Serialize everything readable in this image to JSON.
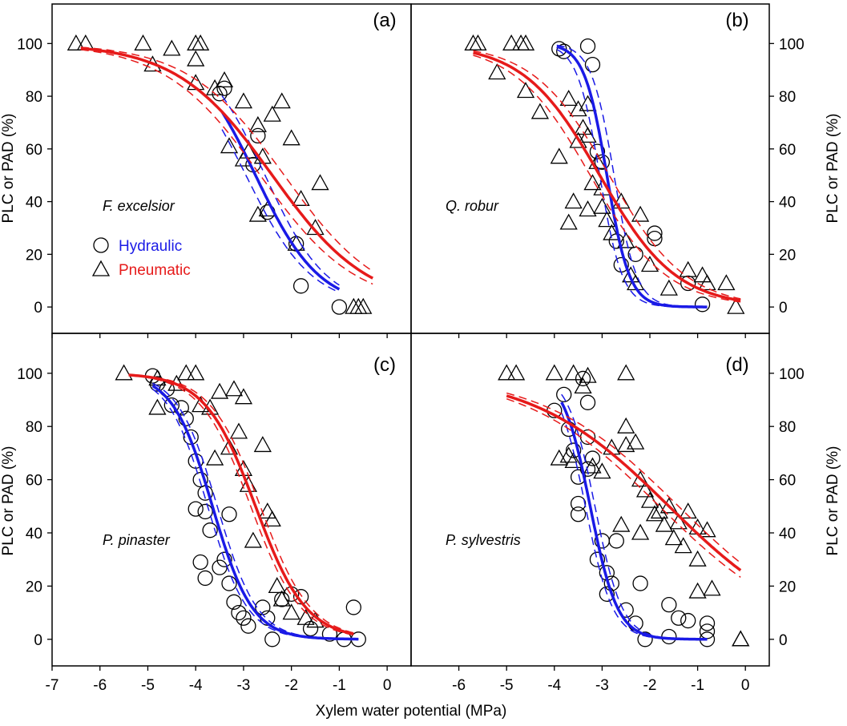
{
  "colors": {
    "hydraulic": "#1a1ae6",
    "pneumatic": "#e61a1a",
    "marker_stroke": "#000000",
    "frame": "#000000"
  },
  "figure": {
    "xlabel": "Xylem water potential (MPa)",
    "ylabel_left": "PLC or PAD (%)",
    "ylabel_right": "PLC or PAD (%)"
  },
  "legend": {
    "hydraulic_label": "Hydraulic",
    "pneumatic_label": "Pneumatic"
  },
  "chart_data": [
    {
      "panel": "(a)",
      "species": "F. excelsior",
      "type": "scatter",
      "xlim": [
        -7,
        0.5
      ],
      "ylim": [
        -10,
        115
      ],
      "xticks": [
        "-7",
        "-6",
        "-5",
        "-4",
        "-3",
        "-2",
        "-1",
        "0"
      ],
      "yticks": [
        "0",
        "20",
        "40",
        "60",
        "80",
        "100"
      ],
      "series": [
        {
          "name": "Hydraulic",
          "marker": "circle",
          "points": [
            [
              -3.5,
              81
            ],
            [
              -3.4,
              83
            ],
            [
              -2.8,
              54
            ],
            [
              -2.5,
              36
            ],
            [
              -2.7,
              65
            ],
            [
              -1.9,
              24
            ],
            [
              -1.8,
              8
            ],
            [
              -1.0,
              0
            ]
          ],
          "fit": {
            "p50": -2.75,
            "slope": 1.5,
            "xrange": [
              -3.45,
              -1.0
            ]
          },
          "ci": {
            "low": {
              "p50": -2.55,
              "slope": 1.55
            },
            "high": {
              "p50": -2.95,
              "slope": 1.45
            }
          }
        },
        {
          "name": "Pneumatic",
          "marker": "triangle",
          "points": [
            [
              -6.5,
              100
            ],
            [
              -6.3,
              100
            ],
            [
              -5.1,
              100
            ],
            [
              -4.5,
              98
            ],
            [
              -4.9,
              92
            ],
            [
              -4.0,
              100
            ],
            [
              -3.9,
              100
            ],
            [
              -4.0,
              94
            ],
            [
              -4.0,
              85
            ],
            [
              -3.6,
              83
            ],
            [
              -3.4,
              86
            ],
            [
              -3.3,
              61
            ],
            [
              -3.0,
              78
            ],
            [
              -3.0,
              56
            ],
            [
              -2.9,
              59
            ],
            [
              -2.7,
              69
            ],
            [
              -2.7,
              35
            ],
            [
              -2.6,
              57
            ],
            [
              -2.5,
              37
            ],
            [
              -2.4,
              73
            ],
            [
              -2.2,
              78
            ],
            [
              -2.0,
              64
            ],
            [
              -1.8,
              41
            ],
            [
              -1.9,
              24
            ],
            [
              -1.5,
              30
            ],
            [
              -1.4,
              47
            ],
            [
              -0.7,
              0
            ],
            [
              -0.6,
              0
            ],
            [
              -0.5,
              0
            ]
          ],
          "fit": {
            "p50": -2.4,
            "slope": 1.0,
            "xrange": [
              -6.4,
              -0.3
            ]
          },
          "ci": {
            "low": {
              "p50": -2.15,
              "slope": 1.0
            },
            "high": {
              "p50": -2.65,
              "slope": 1.0
            }
          }
        }
      ]
    },
    {
      "panel": "(b)",
      "species": "Q. robur",
      "type": "scatter",
      "xlim": [
        -7,
        0.5
      ],
      "ylim": [
        -10,
        115
      ],
      "xticks": [
        "-6",
        "-5",
        "-4",
        "-3",
        "-2",
        "-1",
        "0"
      ],
      "yticks": [
        "0",
        "20",
        "40",
        "60",
        "80",
        "100"
      ],
      "series": [
        {
          "name": "Hydraulic",
          "marker": "circle",
          "points": [
            [
              -3.9,
              98
            ],
            [
              -3.8,
              97
            ],
            [
              -3.3,
              99
            ],
            [
              -3.2,
              92
            ],
            [
              -3.1,
              59
            ],
            [
              -3.0,
              55
            ],
            [
              -2.7,
              25
            ],
            [
              -2.6,
              16
            ],
            [
              -2.3,
              20
            ],
            [
              -1.9,
              28
            ],
            [
              -1.9,
              26
            ],
            [
              -1.2,
              9
            ],
            [
              -0.9,
              1
            ]
          ],
          "fit": {
            "p50": -2.9,
            "slope": 4.2,
            "xrange": [
              -3.95,
              -0.8
            ]
          },
          "ci": {
            "low": {
              "p50": -2.75,
              "slope": 4.2
            },
            "high": {
              "p50": -3.05,
              "slope": 4.2
            }
          }
        },
        {
          "name": "Pneumatic",
          "marker": "triangle",
          "points": [
            [
              -5.7,
              100
            ],
            [
              -5.6,
              100
            ],
            [
              -4.9,
              100
            ],
            [
              -4.7,
              100
            ],
            [
              -4.6,
              100
            ],
            [
              -5.2,
              89
            ],
            [
              -4.6,
              82
            ],
            [
              -4.3,
              74
            ],
            [
              -3.7,
              79
            ],
            [
              -3.5,
              75
            ],
            [
              -3.3,
              77
            ],
            [
              -3.5,
              63
            ],
            [
              -3.4,
              68
            ],
            [
              -3.3,
              65
            ],
            [
              -3.1,
              55
            ],
            [
              -3.2,
              47
            ],
            [
              -3.0,
              45
            ],
            [
              -3.0,
              38
            ],
            [
              -2.9,
              33
            ],
            [
              -2.8,
              28
            ],
            [
              -3.9,
              57
            ],
            [
              -3.6,
              40
            ],
            [
              -3.7,
              32
            ],
            [
              -3.3,
              37
            ],
            [
              -2.6,
              40
            ],
            [
              -2.5,
              25
            ],
            [
              -2.4,
              12
            ],
            [
              -2.3,
              9
            ],
            [
              -2.2,
              35
            ],
            [
              -2.0,
              16
            ],
            [
              -1.6,
              7
            ],
            [
              -1.2,
              14
            ],
            [
              -0.9,
              12
            ],
            [
              -0.8,
              9
            ],
            [
              -0.4,
              9
            ],
            [
              -0.2,
              0
            ]
          ],
          "fit": {
            "p50": -3.05,
            "slope": 1.25,
            "xrange": [
              -5.7,
              -0.1
            ]
          },
          "ci": {
            "low": {
              "p50": -2.85,
              "slope": 1.25
            },
            "high": {
              "p50": -3.25,
              "slope": 1.25
            }
          }
        }
      ]
    },
    {
      "panel": "(c)",
      "species": "P. pinaster",
      "type": "scatter",
      "xlim": [
        -7,
        0.5
      ],
      "ylim": [
        -10,
        115
      ],
      "xticks": [
        "-7",
        "-6",
        "-5",
        "-4",
        "-3",
        "-2",
        "-1",
        "0"
      ],
      "yticks": [
        "0",
        "20",
        "40",
        "60",
        "80",
        "100"
      ],
      "series": [
        {
          "name": "Hydraulic",
          "marker": "circle",
          "points": [
            [
              -4.9,
              99
            ],
            [
              -4.8,
              96
            ],
            [
              -4.6,
              94
            ],
            [
              -4.5,
              88
            ],
            [
              -4.3,
              87
            ],
            [
              -4.2,
              83
            ],
            [
              -4.1,
              76
            ],
            [
              -4.0,
              67
            ],
            [
              -3.9,
              60
            ],
            [
              -3.8,
              55
            ],
            [
              -3.8,
              48
            ],
            [
              -3.7,
              41
            ],
            [
              -4.0,
              49
            ],
            [
              -3.9,
              29
            ],
            [
              -3.8,
              23
            ],
            [
              -3.5,
              27
            ],
            [
              -3.4,
              30
            ],
            [
              -3.3,
              47
            ],
            [
              -3.3,
              21
            ],
            [
              -3.2,
              14
            ],
            [
              -3.1,
              10
            ],
            [
              -3.0,
              8
            ],
            [
              -2.9,
              5
            ],
            [
              -2.6,
              12
            ],
            [
              -2.5,
              8
            ],
            [
              -2.4,
              0
            ],
            [
              -2.2,
              15
            ],
            [
              -2.0,
              17
            ],
            [
              -1.8,
              16
            ],
            [
              -1.6,
              4
            ],
            [
              -1.2,
              2
            ],
            [
              -0.9,
              0
            ],
            [
              -0.7,
              12
            ],
            [
              -0.6,
              0
            ]
          ],
          "fit": {
            "p50": -3.65,
            "slope": 2.4,
            "xrange": [
              -4.9,
              -0.6
            ]
          },
          "ci": {
            "low": {
              "p50": -3.55,
              "slope": 2.4
            },
            "high": {
              "p50": -3.75,
              "slope": 2.4
            }
          }
        },
        {
          "name": "Pneumatic",
          "marker": "triangle",
          "points": [
            [
              -5.5,
              100
            ],
            [
              -4.8,
              98
            ],
            [
              -4.4,
              96
            ],
            [
              -4.2,
              100
            ],
            [
              -4.0,
              100
            ],
            [
              -3.9,
              88
            ],
            [
              -3.7,
              87
            ],
            [
              -3.5,
              93
            ],
            [
              -3.2,
              94
            ],
            [
              -3.0,
              91
            ],
            [
              -3.3,
              72
            ],
            [
              -3.1,
              78
            ],
            [
              -2.9,
              58
            ],
            [
              -2.6,
              73
            ],
            [
              -2.8,
              37
            ],
            [
              -2.5,
              48
            ],
            [
              -2.4,
              45
            ],
            [
              -2.3,
              20
            ],
            [
              -2.2,
              15
            ],
            [
              -2.0,
              10
            ],
            [
              -1.7,
              8
            ],
            [
              -1.5,
              7
            ],
            [
              -4.8,
              87
            ],
            [
              -3.6,
              68
            ],
            [
              -3.0,
              64
            ]
          ],
          "fit": {
            "p50": -2.75,
            "slope": 1.9,
            "xrange": [
              -5.4,
              -0.7
            ]
          },
          "ci": {
            "low": {
              "p50": -2.65,
              "slope": 1.9
            },
            "high": {
              "p50": -2.85,
              "slope": 1.9
            }
          }
        }
      ]
    },
    {
      "panel": "(d)",
      "species": "P. sylvestris",
      "type": "scatter",
      "xlim": [
        -7,
        0.5
      ],
      "ylim": [
        -10,
        115
      ],
      "xticks": [
        "-6",
        "-5",
        "-4",
        "-3",
        "-2",
        "-1",
        "0"
      ],
      "yticks": [
        "0",
        "20",
        "40",
        "60",
        "80",
        "100"
      ],
      "series": [
        {
          "name": "Hydraulic",
          "marker": "circle",
          "points": [
            [
              -4.0,
              86
            ],
            [
              -3.8,
              92
            ],
            [
              -3.7,
              79
            ],
            [
              -3.6,
              71
            ],
            [
              -3.4,
              98
            ],
            [
              -3.3,
              89
            ],
            [
              -3.3,
              76
            ],
            [
              -3.2,
              68
            ],
            [
              -3.3,
              64
            ],
            [
              -3.5,
              61
            ],
            [
              -3.5,
              51
            ],
            [
              -3.5,
              47
            ],
            [
              -3.0,
              37
            ],
            [
              -3.1,
              30
            ],
            [
              -2.9,
              25
            ],
            [
              -2.8,
              21
            ],
            [
              -2.9,
              17
            ],
            [
              -2.7,
              37
            ],
            [
              -2.5,
              11
            ],
            [
              -2.3,
              6
            ],
            [
              -2.2,
              21
            ],
            [
              -2.1,
              0
            ],
            [
              -1.6,
              13
            ],
            [
              -1.6,
              1
            ],
            [
              -1.4,
              8
            ],
            [
              -1.2,
              7
            ],
            [
              -0.8,
              6
            ],
            [
              -0.8,
              3
            ],
            [
              -0.8,
              0
            ]
          ],
          "fit": {
            "p50": -3.25,
            "slope": 3.5,
            "xrange": [
              -3.85,
              -0.8
            ]
          },
          "ci": {
            "low": {
              "p50": -3.15,
              "slope": 3.5
            },
            "high": {
              "p50": -3.35,
              "slope": 3.5
            }
          }
        },
        {
          "name": "Pneumatic",
          "marker": "triangle",
          "points": [
            [
              -5.0,
              100
            ],
            [
              -4.8,
              100
            ],
            [
              -4.0,
              100
            ],
            [
              -3.6,
              100
            ],
            [
              -3.4,
              95
            ],
            [
              -3.3,
              99
            ],
            [
              -2.5,
              100
            ],
            [
              -3.9,
              68
            ],
            [
              -3.7,
              69
            ],
            [
              -3.6,
              67
            ],
            [
              -3.2,
              65
            ],
            [
              -3.0,
              63
            ],
            [
              -2.8,
              72
            ],
            [
              -2.5,
              80
            ],
            [
              -2.5,
              73
            ],
            [
              -2.3,
              74
            ],
            [
              -2.2,
              60
            ],
            [
              -2.1,
              56
            ],
            [
              -2.0,
              52
            ],
            [
              -1.9,
              47
            ],
            [
              -1.8,
              48
            ],
            [
              -1.7,
              43
            ],
            [
              -1.6,
              50
            ],
            [
              -1.4,
              44
            ],
            [
              -1.2,
              48
            ],
            [
              -1.0,
              42
            ],
            [
              -0.8,
              41
            ],
            [
              -2.6,
              43
            ],
            [
              -2.2,
              40
            ],
            [
              -1.5,
              38
            ],
            [
              -1.3,
              35
            ],
            [
              -1.0,
              30
            ],
            [
              -1.0,
              18
            ],
            [
              -0.7,
              19
            ],
            [
              -0.1,
              0
            ],
            [
              -0.1,
              0
            ]
          ],
          "fit": {
            "p50": -1.6,
            "slope": 0.7,
            "xrange": [
              -5.0,
              -0.1
            ]
          },
          "ci": {
            "low": {
              "p50": -1.4,
              "slope": 0.7
            },
            "high": {
              "p50": -1.8,
              "slope": 0.7
            }
          }
        }
      ]
    }
  ]
}
